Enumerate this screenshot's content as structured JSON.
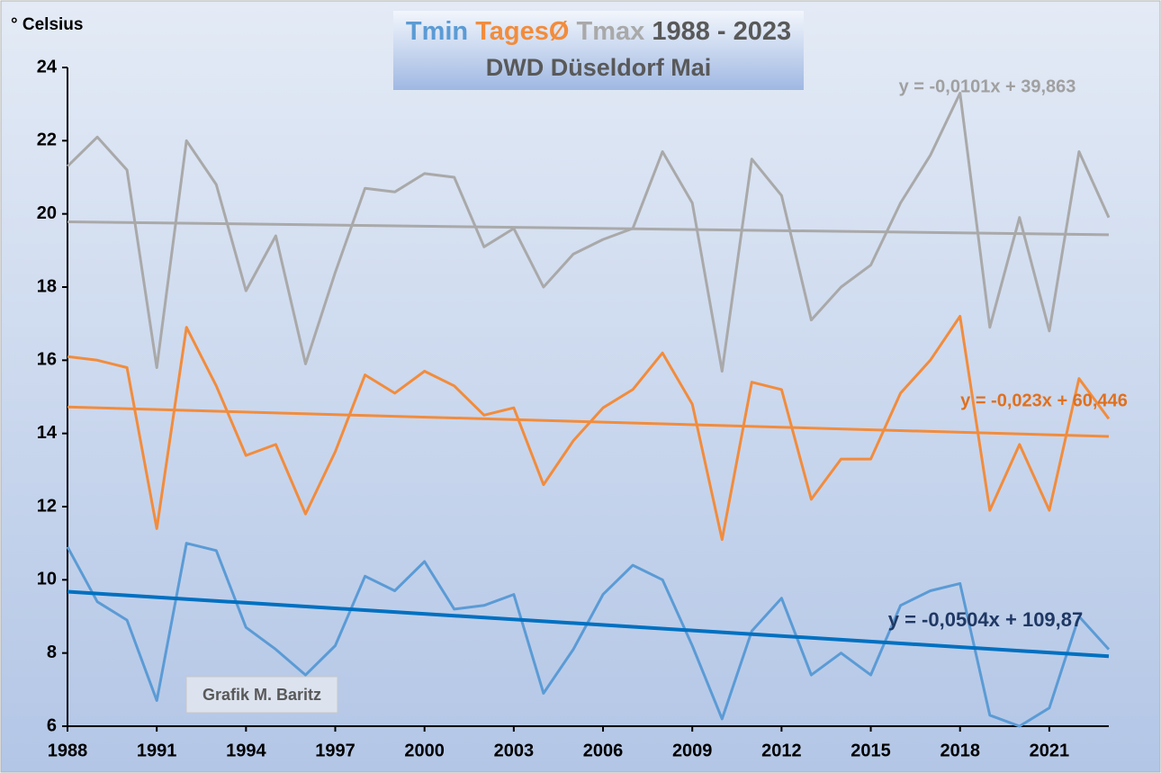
{
  "chart_data": {
    "type": "line",
    "title": "1988 - 2023",
    "subtitle": "DWD Düseldorf Mai",
    "y_label": "° Celsius",
    "annotation": "Grafik M. Baritz",
    "x": [
      1988,
      1989,
      1990,
      1991,
      1992,
      1993,
      1994,
      1995,
      1996,
      1997,
      1998,
      1999,
      2000,
      2001,
      2002,
      2003,
      2004,
      2005,
      2006,
      2007,
      2008,
      2009,
      2010,
      2011,
      2012,
      2013,
      2014,
      2015,
      2016,
      2017,
      2018,
      2019,
      2020,
      2021,
      2022,
      2023
    ],
    "xlim": [
      1988,
      2023
    ],
    "xticks": [
      1988,
      1991,
      1994,
      1997,
      2000,
      2003,
      2006,
      2009,
      2012,
      2015,
      2018,
      2021
    ],
    "ylim": [
      6,
      24
    ],
    "yticks": [
      6,
      8,
      10,
      12,
      14,
      16,
      18,
      20,
      22,
      24
    ],
    "grid": false,
    "series": [
      {
        "name": "Tmin",
        "color": "#5b9bd5",
        "values": [
          10.9,
          9.4,
          8.9,
          6.7,
          11.0,
          10.8,
          8.7,
          8.1,
          7.4,
          8.2,
          10.1,
          9.7,
          10.5,
          9.2,
          9.3,
          9.6,
          6.9,
          8.1,
          9.6,
          10.4,
          10.0,
          8.2,
          6.2,
          8.6,
          9.5,
          7.4,
          8.0,
          7.4,
          9.3,
          9.7,
          9.9,
          6.3,
          6.0,
          6.5,
          9.0,
          8.1
        ],
        "trend": {
          "slope": -0.0504,
          "intercept": 109.87,
          "label": "y = -0,0504x + 109,87",
          "color": "#0070c0",
          "label_color": "#1f3864"
        }
      },
      {
        "name": "TagesØ",
        "color": "#f28c3c",
        "values": [
          16.1,
          16.0,
          15.8,
          11.4,
          16.9,
          15.3,
          13.4,
          13.7,
          11.8,
          13.5,
          15.6,
          15.1,
          15.7,
          15.3,
          14.5,
          14.7,
          12.6,
          13.8,
          14.7,
          15.2,
          16.2,
          14.8,
          11.1,
          15.4,
          15.2,
          12.2,
          13.3,
          13.3,
          15.1,
          16.0,
          17.2,
          11.9,
          13.7,
          11.9,
          15.5,
          14.4
        ],
        "trend": {
          "slope": -0.023,
          "intercept": 60.446,
          "label": "y = -0,023x + 60,446",
          "color": "#f28c3c",
          "label_color": "#e0701e"
        }
      },
      {
        "name": "Tmax",
        "color": "#a9a9a9",
        "values": [
          21.3,
          22.1,
          21.2,
          15.8,
          22.0,
          20.8,
          17.9,
          19.4,
          15.9,
          18.4,
          20.7,
          20.6,
          21.1,
          21.0,
          19.1,
          19.6,
          18.0,
          18.9,
          19.3,
          19.6,
          21.7,
          20.3,
          15.7,
          21.5,
          20.5,
          17.1,
          18.0,
          18.6,
          20.3,
          21.6,
          23.3,
          16.9,
          19.9,
          16.8,
          21.7,
          19.9
        ],
        "trend": {
          "slope": -0.0101,
          "intercept": 39.863,
          "label": "y = -0,0101x + 39,863",
          "color": "#a9a9a9",
          "label_color": "#a0a0a0"
        }
      }
    ]
  }
}
